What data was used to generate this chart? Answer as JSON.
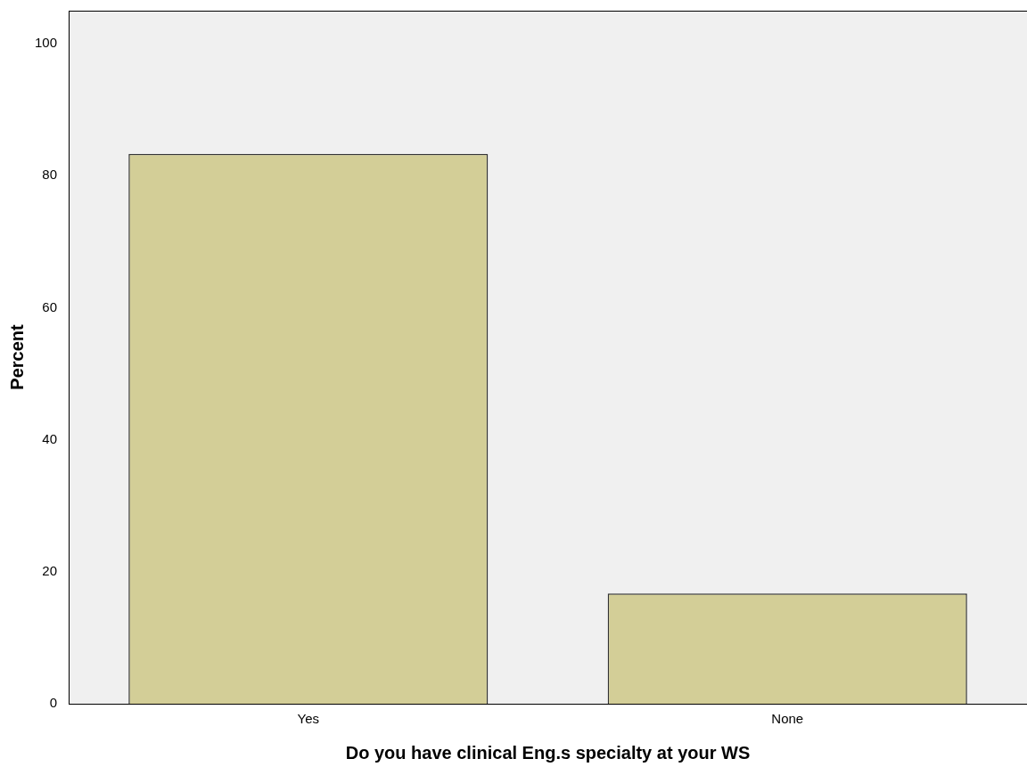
{
  "chart_data": {
    "type": "bar",
    "xlabel": "Do you have clinical Eng.s specialty at your WS",
    "ylabel": "Percent",
    "categories": [
      "Yes",
      "None"
    ],
    "values": [
      83.3,
      16.7
    ],
    "color": "#d3ce97",
    "ylim": [
      0,
      105
    ],
    "yticks": [
      0,
      20,
      40,
      60,
      80,
      100
    ]
  }
}
